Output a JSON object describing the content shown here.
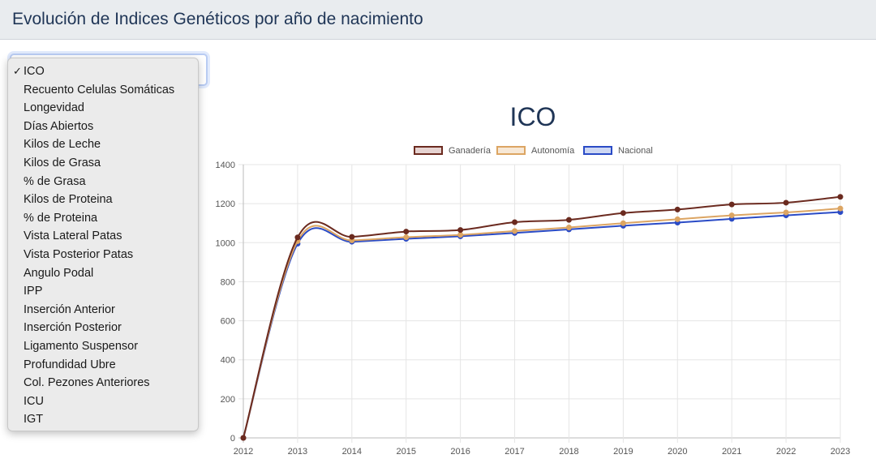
{
  "header": {
    "title": "Evolución de Indices Genéticos por año de nacimiento"
  },
  "selector": {
    "selected": "ICO",
    "options": [
      "ICO",
      "Recuento Celulas Somáticas",
      "Longevidad",
      "Días Abiertos",
      "Kilos de Leche",
      "Kilos de Grasa",
      "% de Grasa",
      "Kilos de Proteina",
      "% de Proteina",
      "Vista Lateral Patas",
      "Vista Posterior Patas",
      "Angulo Podal",
      "IPP",
      "Inserción Anterior",
      "Inserción Posterior",
      "Ligamento Suspensor",
      "Profundidad Ubre",
      "Col. Pezones Anteriores",
      "ICU",
      "IGT"
    ]
  },
  "chart_data": {
    "type": "line",
    "title": "ICO",
    "xlabel": "",
    "ylabel": "",
    "legend_position": "top",
    "grid": true,
    "ylim": [
      0,
      1400
    ],
    "y_ticks": [
      0,
      200,
      400,
      600,
      800,
      1000,
      1200,
      1400
    ],
    "categories": [
      "2012",
      "2013",
      "2014",
      "2015",
      "2016",
      "2017",
      "2018",
      "2019",
      "2020",
      "2021",
      "2022",
      "2023"
    ],
    "series": [
      {
        "name": "Ganadería",
        "border": "#6b2a1f",
        "fill": "#e6d3d1",
        "values": [
          0,
          1027,
          1030,
          1057,
          1065,
          1105,
          1117,
          1152,
          1170,
          1196,
          1205,
          1235
        ]
      },
      {
        "name": "Autonomía",
        "border": "#dca563",
        "fill": "#f7e8d6",
        "values": [
          0,
          1008,
          1012,
          1028,
          1040,
          1060,
          1078,
          1100,
          1120,
          1140,
          1155,
          1175
        ]
      },
      {
        "name": "Nacional",
        "border": "#2a4bc6",
        "fill": "#cdd7f3",
        "values": [
          0,
          995,
          1005,
          1020,
          1033,
          1050,
          1068,
          1087,
          1103,
          1122,
          1140,
          1157
        ]
      }
    ]
  }
}
